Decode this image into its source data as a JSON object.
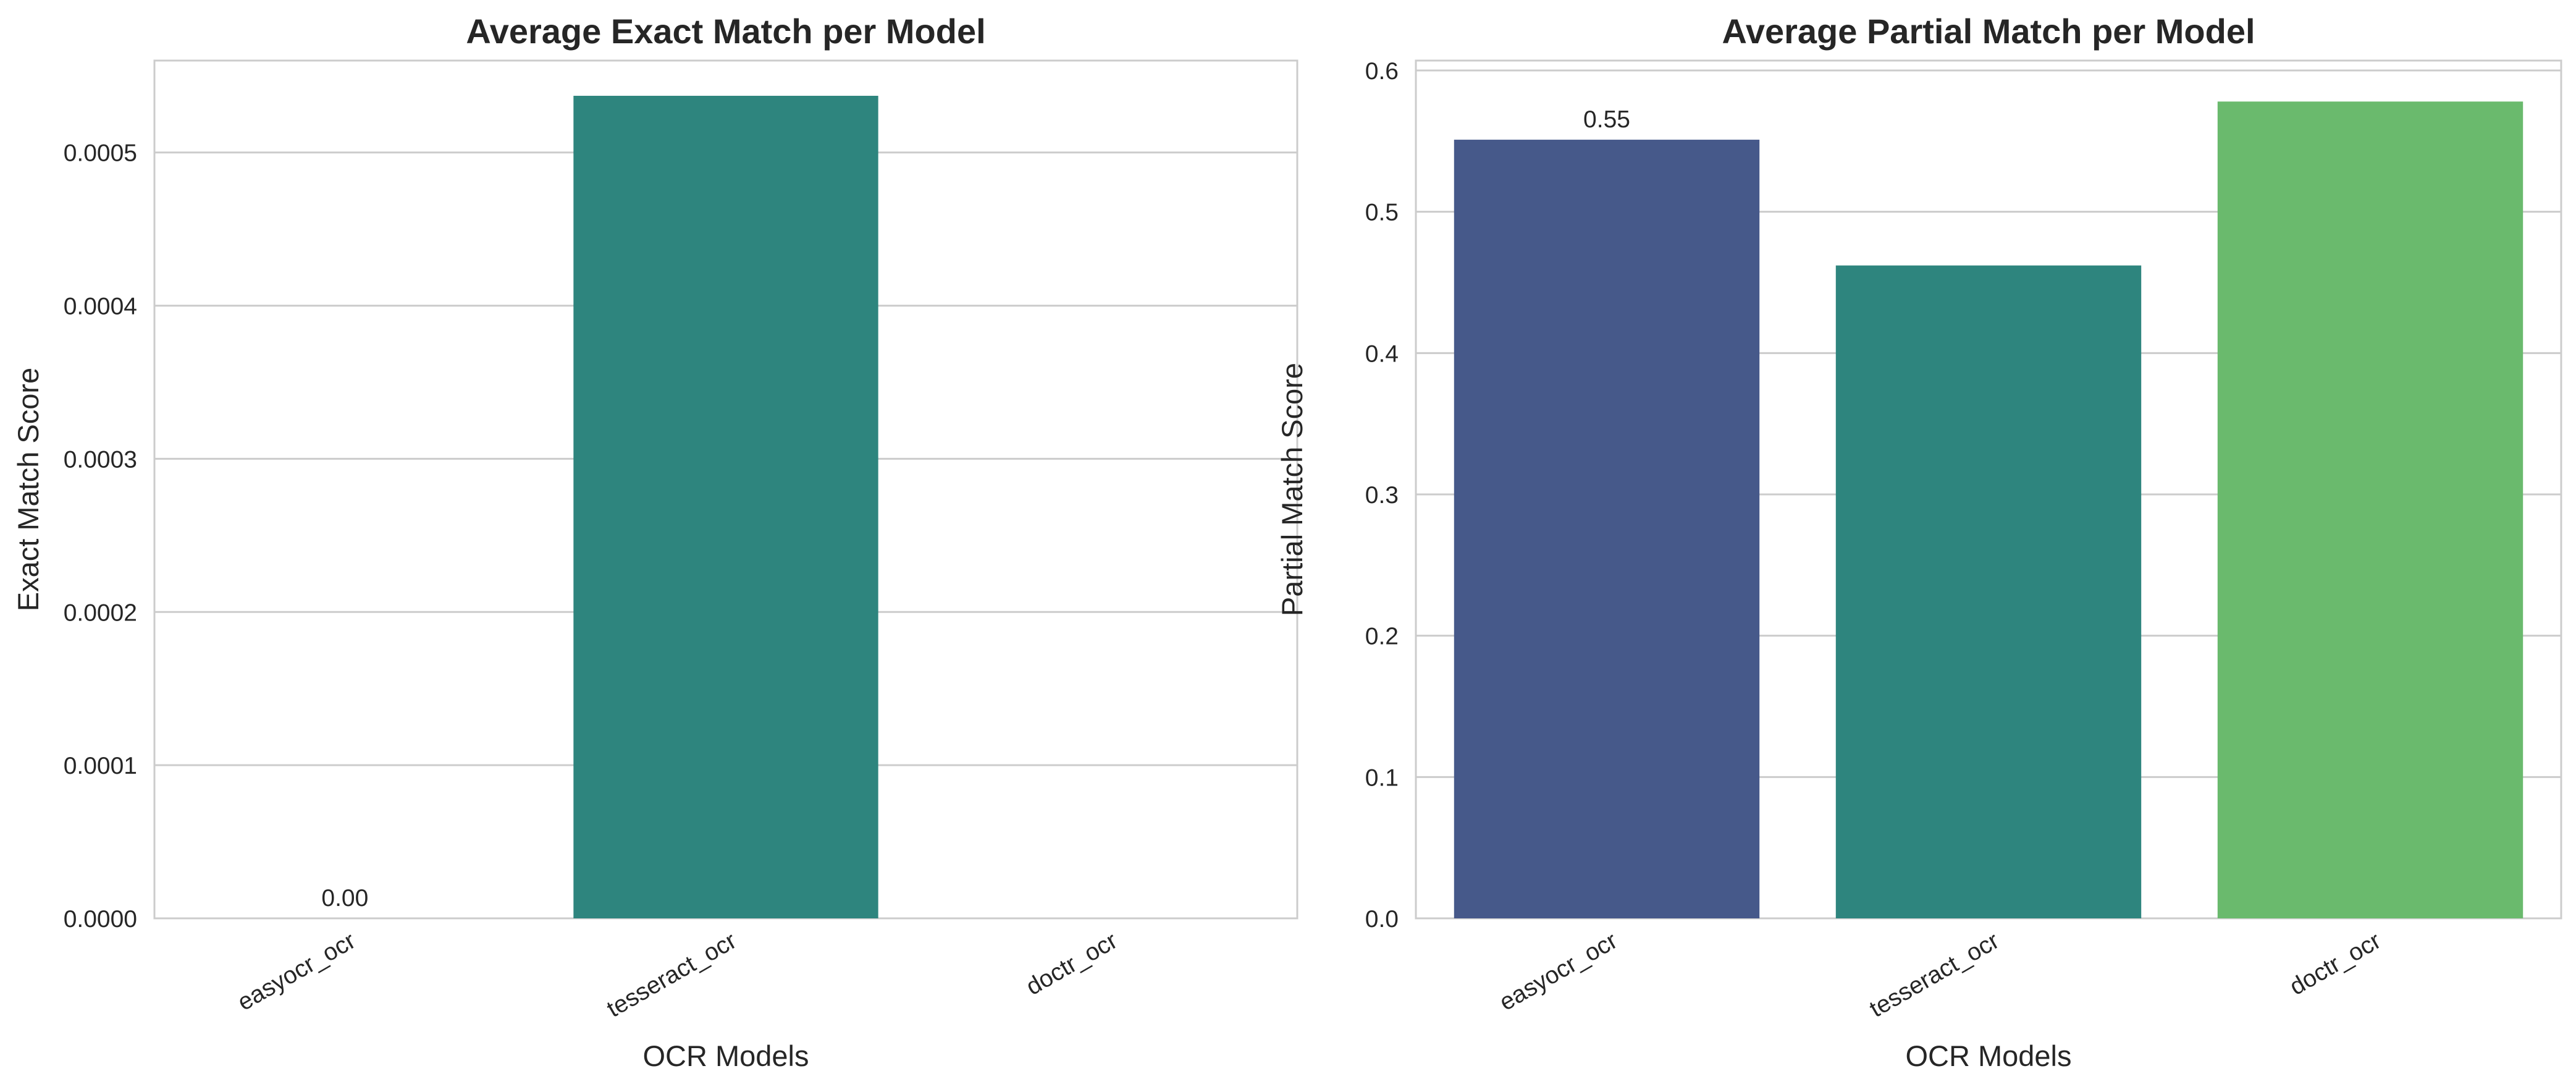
{
  "chart_data": [
    {
      "type": "bar",
      "title": "Average Exact Match per Model",
      "xlabel": "OCR Models",
      "ylabel": "Exact Match Score",
      "categories": [
        "easyocr_ocr",
        "tesseract_ocr",
        "doctr_ocr"
      ],
      "values": [
        0.0,
        0.000537,
        0.0
      ],
      "colors": [
        "#46598a",
        "#2e857e",
        "#6aba6d"
      ],
      "ylim": [
        0,
        0.00056
      ],
      "yticks": [
        0,
        0.0001,
        0.0002,
        0.0003,
        0.0004,
        0.0005
      ],
      "ytick_labels": [
        "0.0000",
        "0.0001",
        "0.0002",
        "0.0003",
        "0.0004",
        "0.0005"
      ],
      "bar_labels": [
        "0.00",
        "",
        ""
      ],
      "grid": true,
      "legend": "none"
    },
    {
      "type": "bar",
      "title": "Average Partial Match per Model",
      "xlabel": "OCR Models",
      "ylabel": "Partial Match Score",
      "categories": [
        "easyocr_ocr",
        "tesseract_ocr",
        "doctr_ocr"
      ],
      "values": [
        0.551,
        0.462,
        0.578
      ],
      "colors": [
        "#46598a",
        "#2e857e",
        "#6aba6d"
      ],
      "ylim": [
        0,
        0.607
      ],
      "yticks": [
        0,
        0.1,
        0.2,
        0.3,
        0.4,
        0.5,
        0.6
      ],
      "ytick_labels": [
        "0.0",
        "0.1",
        "0.2",
        "0.3",
        "0.4",
        "0.5",
        "0.6"
      ],
      "bar_labels": [
        "0.55",
        "",
        ""
      ],
      "grid": true,
      "legend": "none"
    }
  ]
}
